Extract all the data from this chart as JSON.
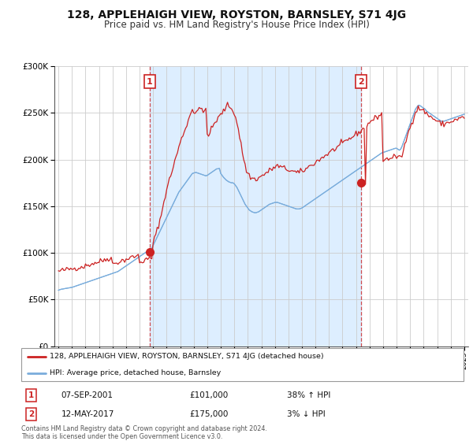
{
  "title": "128, APPLEHAIGH VIEW, ROYSTON, BARNSLEY, S71 4JG",
  "subtitle": "Price paid vs. HM Land Registry's House Price Index (HPI)",
  "title_fontsize": 10,
  "subtitle_fontsize": 8.5,
  "sale1_date": 2001.75,
  "sale1_price": 101000,
  "sale1_date_str": "07-SEP-2001",
  "sale1_hpi_str": "38% ↑ HPI",
  "sale2_date": 2017.37,
  "sale2_price": 175000,
  "sale2_date_str": "12-MAY-2017",
  "sale2_hpi_str": "3% ↓ HPI",
  "red_color": "#cc2222",
  "blue_color": "#7aaddc",
  "shade_color": "#ddeeff",
  "legend1_label": "128, APPLEHAIGH VIEW, ROYSTON, BARNSLEY, S71 4JG (detached house)",
  "legend2_label": "HPI: Average price, detached house, Barnsley",
  "footer1": "Contains HM Land Registry data © Crown copyright and database right 2024.",
  "footer2": "This data is licensed under the Open Government Licence v3.0.",
  "ylim": [
    0,
    300000
  ],
  "xlim": [
    1994.7,
    2025.3
  ],
  "hpi_x": [
    1995.0,
    1995.1,
    1995.2,
    1995.3,
    1995.4,
    1995.5,
    1995.6,
    1995.7,
    1995.8,
    1995.9,
    1996.0,
    1996.1,
    1996.2,
    1996.3,
    1996.4,
    1996.5,
    1996.6,
    1996.7,
    1996.8,
    1996.9,
    1997.0,
    1997.1,
    1997.2,
    1997.3,
    1997.4,
    1997.5,
    1997.6,
    1997.7,
    1997.8,
    1997.9,
    1998.0,
    1998.1,
    1998.2,
    1998.3,
    1998.4,
    1998.5,
    1998.6,
    1998.7,
    1998.8,
    1998.9,
    1999.0,
    1999.1,
    1999.2,
    1999.3,
    1999.4,
    1999.5,
    1999.6,
    1999.7,
    1999.8,
    1999.9,
    2000.0,
    2000.1,
    2000.2,
    2000.3,
    2000.4,
    2000.5,
    2000.6,
    2000.7,
    2000.8,
    2000.9,
    2001.0,
    2001.1,
    2001.2,
    2001.3,
    2001.4,
    2001.5,
    2001.6,
    2001.7,
    2001.8,
    2001.9,
    2002.0,
    2002.1,
    2002.2,
    2002.3,
    2002.4,
    2002.5,
    2002.6,
    2002.7,
    2002.8,
    2002.9,
    2003.0,
    2003.1,
    2003.2,
    2003.3,
    2003.4,
    2003.5,
    2003.6,
    2003.7,
    2003.8,
    2003.9,
    2004.0,
    2004.1,
    2004.2,
    2004.3,
    2004.4,
    2004.5,
    2004.6,
    2004.7,
    2004.8,
    2004.9,
    2005.0,
    2005.1,
    2005.2,
    2005.3,
    2005.4,
    2005.5,
    2005.6,
    2005.7,
    2005.8,
    2005.9,
    2006.0,
    2006.1,
    2006.2,
    2006.3,
    2006.4,
    2006.5,
    2006.6,
    2006.7,
    2006.8,
    2006.9,
    2007.0,
    2007.1,
    2007.2,
    2007.3,
    2007.4,
    2007.5,
    2007.6,
    2007.7,
    2007.8,
    2007.9,
    2008.0,
    2008.1,
    2008.2,
    2008.3,
    2008.4,
    2008.5,
    2008.6,
    2008.7,
    2008.8,
    2008.9,
    2009.0,
    2009.1,
    2009.2,
    2009.3,
    2009.4,
    2009.5,
    2009.6,
    2009.7,
    2009.8,
    2009.9,
    2010.0,
    2010.1,
    2010.2,
    2010.3,
    2010.4,
    2010.5,
    2010.6,
    2010.7,
    2010.8,
    2010.9,
    2011.0,
    2011.1,
    2011.2,
    2011.3,
    2011.4,
    2011.5,
    2011.6,
    2011.7,
    2011.8,
    2011.9,
    2012.0,
    2012.1,
    2012.2,
    2012.3,
    2012.4,
    2012.5,
    2012.6,
    2012.7,
    2012.8,
    2012.9,
    2013.0,
    2013.1,
    2013.2,
    2013.3,
    2013.4,
    2013.5,
    2013.6,
    2013.7,
    2013.8,
    2013.9,
    2014.0,
    2014.1,
    2014.2,
    2014.3,
    2014.4,
    2014.5,
    2014.6,
    2014.7,
    2014.8,
    2014.9,
    2015.0,
    2015.1,
    2015.2,
    2015.3,
    2015.4,
    2015.5,
    2015.6,
    2015.7,
    2015.8,
    2015.9,
    2016.0,
    2016.1,
    2016.2,
    2016.3,
    2016.4,
    2016.5,
    2016.6,
    2016.7,
    2016.8,
    2016.9,
    2017.0,
    2017.1,
    2017.2,
    2017.3,
    2017.4,
    2017.5,
    2017.6,
    2017.7,
    2017.8,
    2017.9,
    2018.0,
    2018.1,
    2018.2,
    2018.3,
    2018.4,
    2018.5,
    2018.6,
    2018.7,
    2018.8,
    2018.9,
    2019.0,
    2019.1,
    2019.2,
    2019.3,
    2019.4,
    2019.5,
    2019.6,
    2019.7,
    2019.8,
    2019.9,
    2020.0,
    2020.1,
    2020.2,
    2020.3,
    2020.4,
    2020.5,
    2020.6,
    2020.7,
    2020.8,
    2020.9,
    2021.0,
    2021.1,
    2021.2,
    2021.3,
    2021.4,
    2021.5,
    2021.6,
    2021.7,
    2021.8,
    2021.9,
    2022.0,
    2022.1,
    2022.2,
    2022.3,
    2022.4,
    2022.5,
    2022.6,
    2022.7,
    2022.8,
    2022.9,
    2023.0,
    2023.1,
    2023.2,
    2023.3,
    2023.4,
    2023.5,
    2023.6,
    2023.7,
    2023.8,
    2023.9,
    2024.0,
    2024.1,
    2024.2,
    2024.3,
    2024.4,
    2024.5,
    2024.6,
    2024.7,
    2024.8,
    2024.9,
    2025.0
  ],
  "hpi_y": [
    60000,
    60500,
    61000,
    61200,
    61500,
    61800,
    62000,
    62300,
    62500,
    62800,
    63000,
    63500,
    64000,
    64500,
    65000,
    65500,
    66000,
    66500,
    67000,
    67500,
    68000,
    68500,
    69000,
    69500,
    70000,
    70500,
    71000,
    71500,
    72000,
    72500,
    73000,
    73500,
    74000,
    74500,
    75000,
    75500,
    76000,
    76500,
    77000,
    77500,
    78000,
    78500,
    79000,
    79500,
    80000,
    81000,
    82000,
    83000,
    84000,
    85000,
    86000,
    87000,
    88000,
    89000,
    90000,
    91000,
    92000,
    93000,
    94000,
    95000,
    96000,
    97000,
    98000,
    99000,
    100000,
    101000,
    102000,
    103000,
    104000,
    105000,
    108000,
    111000,
    114000,
    117000,
    120000,
    123000,
    126000,
    129000,
    132000,
    135000,
    138000,
    141000,
    144000,
    147000,
    150000,
    153000,
    156000,
    159000,
    162000,
    165000,
    167000,
    169000,
    171000,
    173000,
    175000,
    177000,
    179000,
    181000,
    183000,
    185000,
    185500,
    186000,
    186000,
    185500,
    185000,
    184500,
    184000,
    183500,
    183000,
    182500,
    183000,
    184000,
    185000,
    186000,
    187000,
    188000,
    189000,
    190000,
    190000,
    190500,
    185000,
    183000,
    181000,
    179500,
    178000,
    177000,
    176000,
    175500,
    175000,
    175000,
    174000,
    172000,
    170000,
    167000,
    164000,
    161000,
    158000,
    155000,
    152000,
    150000,
    148000,
    146000,
    145000,
    144000,
    143500,
    143000,
    143000,
    143500,
    144000,
    145000,
    146000,
    147000,
    148000,
    149000,
    150000,
    151000,
    152000,
    152500,
    153000,
    153500,
    154000,
    154000,
    154000,
    153500,
    153000,
    152500,
    152000,
    151500,
    151000,
    150500,
    150000,
    149500,
    149000,
    148500,
    148000,
    147500,
    147000,
    147000,
    147000,
    147500,
    148000,
    149000,
    150000,
    151000,
    152000,
    153000,
    154000,
    155000,
    156000,
    157000,
    158000,
    159000,
    160000,
    161000,
    162000,
    163000,
    164000,
    165000,
    166000,
    167000,
    168000,
    169000,
    170000,
    171000,
    172000,
    173000,
    174000,
    175000,
    176000,
    177000,
    178000,
    179000,
    180000,
    181000,
    182000,
    183000,
    184000,
    185000,
    186000,
    187000,
    188000,
    189000,
    190000,
    191000,
    192000,
    193000,
    194000,
    195000,
    196000,
    197000,
    198000,
    199000,
    200000,
    201000,
    202000,
    203000,
    204000,
    205000,
    206000,
    207000,
    207500,
    208000,
    208500,
    209000,
    209500,
    210000,
    210500,
    211000,
    211500,
    212000,
    212000,
    211000,
    210000,
    211000,
    214000,
    218000,
    222000,
    226000,
    230000,
    234000,
    238000,
    242000,
    246000,
    250000,
    254000,
    256000,
    258000,
    258000,
    257000,
    256000,
    255000,
    254000,
    252000,
    251000,
    250000,
    249000,
    248000,
    247000,
    246000,
    245000,
    244000,
    243000,
    242000,
    241000,
    241000,
    241000,
    241500,
    242000,
    242500,
    243000,
    243500,
    244000,
    244500,
    245000,
    245500,
    246000,
    246500,
    247000,
    247500,
    248000,
    248500
  ],
  "price_x": [
    1995.0,
    1995.1,
    1995.2,
    1995.3,
    1995.4,
    1995.5,
    1995.6,
    1995.7,
    1995.8,
    1995.9,
    1996.0,
    1996.1,
    1996.2,
    1996.3,
    1996.4,
    1996.5,
    1996.6,
    1996.7,
    1996.8,
    1996.9,
    1997.0,
    1997.1,
    1997.2,
    1997.3,
    1997.4,
    1997.5,
    1997.6,
    1997.7,
    1997.8,
    1997.9,
    1998.0,
    1998.1,
    1998.2,
    1998.3,
    1998.4,
    1998.5,
    1998.6,
    1998.7,
    1998.8,
    1998.9,
    1999.0,
    1999.1,
    1999.2,
    1999.3,
    1999.4,
    1999.5,
    1999.6,
    1999.7,
    1999.8,
    1999.9,
    2000.0,
    2000.1,
    2000.2,
    2000.3,
    2000.4,
    2000.5,
    2000.6,
    2000.7,
    2000.8,
    2000.9,
    2001.0,
    2001.1,
    2001.2,
    2001.3,
    2001.4,
    2001.5,
    2001.6,
    2001.7,
    2001.8,
    2001.9,
    2002.0,
    2002.1,
    2002.2,
    2002.3,
    2002.4,
    2002.5,
    2002.6,
    2002.7,
    2002.8,
    2002.9,
    2003.0,
    2003.1,
    2003.2,
    2003.3,
    2003.4,
    2003.5,
    2003.6,
    2003.7,
    2003.8,
    2003.9,
    2004.0,
    2004.1,
    2004.2,
    2004.3,
    2004.4,
    2004.5,
    2004.6,
    2004.7,
    2004.8,
    2004.9,
    2005.0,
    2005.1,
    2005.2,
    2005.3,
    2005.4,
    2005.5,
    2005.6,
    2005.7,
    2005.8,
    2005.9,
    2006.0,
    2006.1,
    2006.2,
    2006.3,
    2006.4,
    2006.5,
    2006.6,
    2006.7,
    2006.8,
    2006.9,
    2007.0,
    2007.1,
    2007.2,
    2007.3,
    2007.4,
    2007.5,
    2007.6,
    2007.7,
    2007.8,
    2007.9,
    2008.0,
    2008.1,
    2008.2,
    2008.3,
    2008.4,
    2008.5,
    2008.6,
    2008.7,
    2008.8,
    2008.9,
    2009.0,
    2009.1,
    2009.2,
    2009.3,
    2009.4,
    2009.5,
    2009.6,
    2009.7,
    2009.8,
    2009.9,
    2010.0,
    2010.1,
    2010.2,
    2010.3,
    2010.4,
    2010.5,
    2010.6,
    2010.7,
    2010.8,
    2010.9,
    2011.0,
    2011.1,
    2011.2,
    2011.3,
    2011.4,
    2011.5,
    2011.6,
    2011.7,
    2011.8,
    2011.9,
    2012.0,
    2012.1,
    2012.2,
    2012.3,
    2012.4,
    2012.5,
    2012.6,
    2012.7,
    2012.8,
    2012.9,
    2013.0,
    2013.1,
    2013.2,
    2013.3,
    2013.4,
    2013.5,
    2013.6,
    2013.7,
    2013.8,
    2013.9,
    2014.0,
    2014.1,
    2014.2,
    2014.3,
    2014.4,
    2014.5,
    2014.6,
    2014.7,
    2014.8,
    2014.9,
    2015.0,
    2015.1,
    2015.2,
    2015.3,
    2015.4,
    2015.5,
    2015.6,
    2015.7,
    2015.8,
    2015.9,
    2016.0,
    2016.1,
    2016.2,
    2016.3,
    2016.4,
    2016.5,
    2016.6,
    2016.7,
    2016.8,
    2016.9,
    2017.0,
    2017.1,
    2017.2,
    2017.3,
    2017.37,
    2017.5,
    2017.6,
    2017.7,
    2017.8,
    2017.9,
    2018.0,
    2018.1,
    2018.2,
    2018.3,
    2018.4,
    2018.5,
    2018.6,
    2018.7,
    2018.8,
    2018.9,
    2019.0,
    2019.1,
    2019.2,
    2019.3,
    2019.4,
    2019.5,
    2019.6,
    2019.7,
    2019.8,
    2019.9,
    2020.0,
    2020.1,
    2020.2,
    2020.3,
    2020.4,
    2020.5,
    2020.6,
    2020.7,
    2020.8,
    2020.9,
    2021.0,
    2021.1,
    2021.2,
    2021.3,
    2021.4,
    2021.5,
    2021.6,
    2021.7,
    2021.8,
    2021.9,
    2022.0,
    2022.1,
    2022.2,
    2022.3,
    2022.4,
    2022.5,
    2022.6,
    2022.7,
    2022.8,
    2022.9,
    2023.0,
    2023.1,
    2023.2,
    2023.3,
    2023.4,
    2023.5,
    2023.6,
    2023.7,
    2023.8,
    2023.9,
    2024.0,
    2024.1,
    2024.2,
    2024.3,
    2024.4,
    2024.5,
    2024.6,
    2024.7,
    2024.8,
    2024.9,
    2025.0
  ],
  "price_y": [
    80000,
    80500,
    81000,
    81200,
    81500,
    81800,
    82000,
    82300,
    82500,
    82800,
    83000,
    83200,
    83500,
    83800,
    84000,
    84300,
    84600,
    85000,
    85300,
    85600,
    86000,
    86500,
    87000,
    87500,
    88000,
    88500,
    89000,
    89300,
    89600,
    90000,
    90500,
    91000,
    91500,
    92000,
    92500,
    93000,
    93500,
    94000,
    94500,
    95000,
    88000,
    88500,
    89000,
    89500,
    90000,
    90500,
    91000,
    91500,
    92000,
    92500,
    93000,
    93500,
    94000,
    94500,
    95000,
    95500,
    96000,
    96300,
    96600,
    97000,
    90000,
    90500,
    91000,
    91500,
    92000,
    92500,
    93000,
    93500,
    94000,
    94500,
    110000,
    115000,
    120000,
    125000,
    130000,
    135000,
    140000,
    148000,
    155000,
    162000,
    168000,
    173000,
    178000,
    183000,
    188000,
    193000,
    198000,
    203000,
    208000,
    213000,
    218000,
    222000,
    226000,
    230000,
    234000,
    238000,
    242000,
    246000,
    250000,
    254000,
    252000,
    250000,
    252000,
    254000,
    256000,
    254000,
    252000,
    250000,
    252000,
    255000,
    230000,
    225000,
    228000,
    232000,
    235000,
    238000,
    240000,
    242000,
    244000,
    246000,
    248000,
    250000,
    252000,
    254000,
    256000,
    258000,
    258000,
    256000,
    254000,
    252000,
    250000,
    245000,
    240000,
    232000,
    224000,
    216000,
    208000,
    200000,
    194000,
    188000,
    185000,
    183000,
    181000,
    180000,
    179500,
    179000,
    179000,
    179500,
    180000,
    181000,
    182000,
    183000,
    184000,
    185000,
    186000,
    187000,
    188000,
    189000,
    190000,
    191000,
    192000,
    192500,
    193000,
    192500,
    192000,
    191500,
    191000,
    190500,
    190000,
    189500,
    189000,
    188500,
    188000,
    187500,
    187000,
    186500,
    186000,
    186000,
    186000,
    186500,
    187000,
    188000,
    189000,
    190000,
    191000,
    192000,
    193000,
    194000,
    195000,
    196000,
    197000,
    198000,
    199000,
    200000,
    201000,
    202000,
    203000,
    204000,
    205000,
    206000,
    207000,
    208000,
    209000,
    210000,
    211000,
    212000,
    213000,
    214000,
    215000,
    216000,
    217000,
    218000,
    219000,
    220000,
    221000,
    222000,
    223000,
    224000,
    225000,
    226000,
    227000,
    228000,
    229000,
    230000,
    231000,
    232000,
    233000,
    175000,
    236000,
    238000,
    240000,
    241000,
    242000,
    243000,
    244000,
    245000,
    246000,
    247000,
    248000,
    249000,
    199000,
    199500,
    200000,
    200500,
    201000,
    201500,
    202000,
    202500,
    203000,
    203500,
    203000,
    202000,
    201000,
    202000,
    205000,
    210000,
    215000,
    220000,
    225000,
    230000,
    235000,
    239000,
    243000,
    247000,
    251000,
    253000,
    255000,
    255000,
    254000,
    253000,
    252000,
    251000,
    249000,
    248000,
    247000,
    246000,
    245000,
    244000,
    243000,
    242000,
    241000,
    240000,
    239000,
    238000,
    238000,
    238000,
    238500,
    239000,
    239500,
    240000,
    240500,
    241000,
    241500,
    242000,
    242500,
    243000,
    243500,
    244000,
    244500,
    245000,
    245500
  ]
}
